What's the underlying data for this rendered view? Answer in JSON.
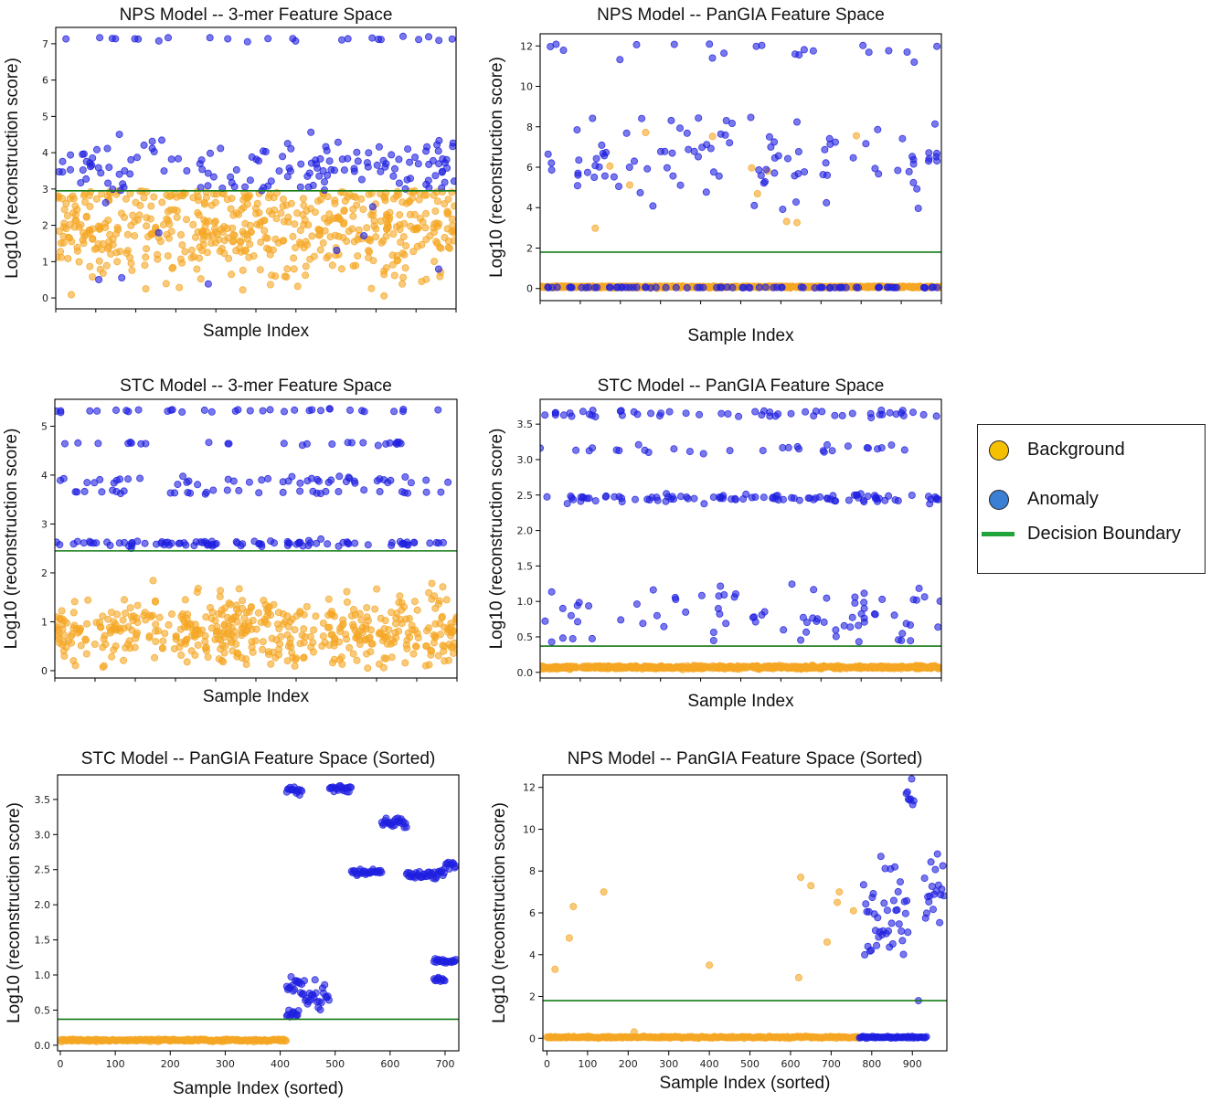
{
  "colors": {
    "background_point": "#f5a623",
    "anomaly_point": "#1f1fe0",
    "decision_boundary": "#157a15",
    "legend_background_dot": "#f5c000",
    "legend_anomaly_dot": "#3b7fd4",
    "legend_boundary_line": "#1fa33a"
  },
  "legend": {
    "items": [
      {
        "label": "Background",
        "icon": "yellow-circle-icon"
      },
      {
        "label": "Anomaly",
        "icon": "blue-circle-icon"
      },
      {
        "label": "Decision Boundary",
        "icon": "green-line-icon"
      }
    ]
  },
  "chart_data": [
    {
      "id": "nps-3mer",
      "type": "scatter",
      "title": "NPS Model -- 3-mer Feature Space",
      "xlabel": "Sample Index",
      "ylabel": "Log10 (reconstruction score)",
      "xlim": [
        0,
        720
      ],
      "ylim": [
        -0.3,
        7.45
      ],
      "yticks": [
        0,
        1,
        2,
        3,
        4,
        5,
        6,
        7
      ],
      "xticks": [],
      "decision_boundary": 2.95,
      "n_points": 720,
      "series": [
        {
          "name": "Background",
          "color": "background_point",
          "clusters": [
            {
              "center": 1.95,
              "spread": 0.75,
              "min": 0.0,
              "max": 2.95,
              "share": 1.0
            }
          ]
        },
        {
          "name": "Anomaly",
          "color": "anomaly_point",
          "clusters": [
            {
              "center": 3.6,
              "spread": 0.45,
              "min": 2.95,
              "max": 4.6,
              "share": 0.82
            },
            {
              "center": 7.15,
              "spread": 0.04,
              "min": 7.05,
              "max": 7.25,
              "share": 0.12
            },
            {
              "center": 1.2,
              "spread": 0.7,
              "min": 0.3,
              "max": 2.9,
              "share": 0.06
            }
          ],
          "count": 180
        }
      ]
    },
    {
      "id": "nps-pangia",
      "type": "scatter",
      "title": "NPS Model -- PanGIA Feature Space",
      "xlabel": "Sample Index",
      "ylabel": "Log10 (reconstruction score)",
      "xlim": [
        0,
        980
      ],
      "ylim": [
        -0.6,
        12.6
      ],
      "yticks": [
        0,
        2,
        4,
        6,
        8,
        10,
        12
      ],
      "xticks": [],
      "decision_boundary": 1.8,
      "n_points": 980,
      "series": [
        {
          "name": "Background",
          "color": "background_point",
          "clusters": [
            {
              "center": 0.08,
              "spread": 0.02,
              "min": 0.0,
              "max": 0.12,
              "share": 0.985
            },
            {
              "center": 5.2,
              "spread": 1.6,
              "min": 2.9,
              "max": 7.8,
              "share": 0.015
            }
          ]
        },
        {
          "name": "Anomaly",
          "color": "anomaly_point",
          "clusters": [
            {
              "center": 0.05,
              "spread": 0.01,
              "min": 0.0,
              "max": 0.1,
              "share": 0.4
            },
            {
              "center": 6.3,
              "spread": 1.1,
              "min": 3.2,
              "max": 8.5,
              "share": 0.5
            },
            {
              "center": 11.7,
              "spread": 0.3,
              "min": 10.8,
              "max": 12.1,
              "share": 0.1
            }
          ],
          "count": 200
        }
      ]
    },
    {
      "id": "stc-3mer",
      "type": "scatter",
      "title": "STC Model -- 3-mer Feature Space",
      "xlabel": "Sample Index",
      "ylabel": "Log10 (reconstruction score)",
      "xlim": [
        0,
        720
      ],
      "ylim": [
        -0.15,
        5.55
      ],
      "yticks": [
        0,
        1,
        2,
        3,
        4,
        5
      ],
      "xticks": [],
      "decision_boundary": 2.45,
      "n_points": 720,
      "series": [
        {
          "name": "Background",
          "color": "background_point",
          "clusters": [
            {
              "center": 0.8,
              "spread": 0.35,
              "min": 0.0,
              "max": 1.9,
              "share": 1.0
            }
          ]
        },
        {
          "name": "Anomaly",
          "color": "anomaly_point",
          "clusters": [
            {
              "center": 2.6,
              "spread": 0.03,
              "min": 2.5,
              "max": 2.7,
              "share": 0.38
            },
            {
              "center": 3.65,
              "spread": 0.02,
              "min": 3.6,
              "max": 3.7,
              "share": 0.15
            },
            {
              "center": 3.88,
              "spread": 0.04,
              "min": 3.8,
              "max": 4.0,
              "share": 0.2
            },
            {
              "center": 4.65,
              "spread": 0.02,
              "min": 4.6,
              "max": 4.7,
              "share": 0.12
            },
            {
              "center": 5.32,
              "spread": 0.02,
              "min": 5.28,
              "max": 5.36,
              "share": 0.15
            }
          ],
          "count": 230
        }
      ]
    },
    {
      "id": "stc-pangia",
      "type": "scatter",
      "title": "STC Model -- PanGIA Feature Space",
      "xlabel": "Sample Index",
      "ylabel": "Log10 (reconstruction score)",
      "xlim": [
        0,
        980
      ],
      "ylim": [
        -0.08,
        3.85
      ],
      "yticks": [
        0.0,
        0.5,
        1.0,
        1.5,
        2.0,
        2.5,
        3.0,
        3.5
      ],
      "xticks": [],
      "decision_boundary": 0.37,
      "n_points": 980,
      "series": [
        {
          "name": "Background",
          "color": "background_point",
          "clusters": [
            {
              "center": 0.07,
              "spread": 0.01,
              "min": 0.0,
              "max": 0.12,
              "share": 1.0
            }
          ]
        },
        {
          "name": "Anomaly",
          "color": "anomaly_point",
          "clusters": [
            {
              "center": 0.8,
              "spread": 0.22,
              "min": 0.42,
              "max": 1.25,
              "share": 0.3
            },
            {
              "center": 2.46,
              "spread": 0.03,
              "min": 2.35,
              "max": 2.65,
              "share": 0.35
            },
            {
              "center": 3.15,
              "spread": 0.04,
              "min": 3.05,
              "max": 3.25,
              "share": 0.15
            },
            {
              "center": 3.64,
              "spread": 0.03,
              "min": 3.55,
              "max": 3.7,
              "share": 0.2
            }
          ],
          "count": 260
        }
      ]
    },
    {
      "id": "stc-pangia-sorted",
      "type": "scatter",
      "title": "STC Model -- PanGIA Feature Space (Sorted)",
      "xlabel": "Sample Index (sorted)",
      "ylabel": "Log10 (reconstruction score)",
      "xlim": [
        -5,
        725
      ],
      "ylim": [
        -0.08,
        3.85
      ],
      "yticks": [
        0.0,
        0.5,
        1.0,
        1.5,
        2.0,
        2.5,
        3.0,
        3.5
      ],
      "xticks": [
        0,
        100,
        200,
        300,
        400,
        500,
        600,
        700
      ],
      "decision_boundary": 0.37,
      "segments": [
        {
          "series": "Background",
          "x": [
            0,
            412
          ],
          "y": 0.07,
          "jitter": 0.008
        },
        {
          "series": "Anomaly",
          "x": [
            412,
            440
          ],
          "y": 3.63,
          "jitter": 0.03
        },
        {
          "series": "Anomaly",
          "x": [
            412,
            440
          ],
          "y": 0.85,
          "jitter": 0.05
        },
        {
          "series": "Anomaly",
          "x": [
            412,
            435
          ],
          "y": 0.45,
          "jitter": 0.04
        },
        {
          "series": "Anomaly",
          "x": [
            440,
            490
          ],
          "y": 0.7,
          "jitter": 0.09
        },
        {
          "series": "Anomaly",
          "x": [
            490,
            530
          ],
          "y": 3.65,
          "jitter": 0.02
        },
        {
          "series": "Anomaly",
          "x": [
            530,
            585
          ],
          "y": 2.46,
          "jitter": 0.02
        },
        {
          "series": "Anomaly",
          "x": [
            585,
            630
          ],
          "y": 3.17,
          "jitter": 0.03
        },
        {
          "series": "Anomaly",
          "x": [
            630,
            700
          ],
          "y": 2.43,
          "jitter": 0.03
        },
        {
          "series": "Anomaly",
          "x": [
            680,
            700
          ],
          "y": 1.2,
          "jitter": 0.02
        },
        {
          "series": "Anomaly",
          "x": [
            680,
            700
          ],
          "y": 0.93,
          "jitter": 0.02
        },
        {
          "series": "Anomaly",
          "x": [
            700,
            720
          ],
          "y": 1.2,
          "jitter": 0.02
        },
        {
          "series": "Anomaly",
          "x": [
            700,
            720
          ],
          "y": 2.58,
          "jitter": 0.03
        }
      ]
    },
    {
      "id": "nps-pangia-sorted",
      "type": "scatter",
      "title": "NPS Model -- PanGIA Feature Space (Sorted)",
      "xlabel": "Sample Index (sorted)",
      "ylabel": "Log10 (reconstruction score)",
      "xlim": [
        -10,
        985
      ],
      "ylim": [
        -0.6,
        12.6
      ],
      "yticks": [
        0,
        2,
        4,
        6,
        8,
        10,
        12
      ],
      "xticks": [
        0,
        100,
        200,
        300,
        400,
        500,
        600,
        700,
        800,
        900
      ],
      "decision_boundary": 1.8,
      "segments": [
        {
          "series": "Background",
          "x": [
            0,
            770
          ],
          "y": 0.05,
          "jitter": 0.02
        },
        {
          "series": "Anomaly",
          "x": [
            770,
            935
          ],
          "y": 0.05,
          "jitter": 0.02
        },
        {
          "series": "Anomaly",
          "x": [
            780,
            890
          ],
          "y": 6.0,
          "jitter": 1.2
        },
        {
          "series": "Anomaly",
          "x": [
            885,
            905
          ],
          "y": 11.7,
          "jitter": 0.3
        },
        {
          "series": "Anomaly",
          "x": [
            930,
            980
          ],
          "y": 7.0,
          "jitter": 0.9
        }
      ],
      "outliers": [
        {
          "series": "Background",
          "x": 20,
          "y": 3.3
        },
        {
          "series": "Background",
          "x": 55,
          "y": 4.8
        },
        {
          "series": "Background",
          "x": 65,
          "y": 6.3
        },
        {
          "series": "Background",
          "x": 140,
          "y": 7.0
        },
        {
          "series": "Background",
          "x": 215,
          "y": 0.3
        },
        {
          "series": "Background",
          "x": 400,
          "y": 3.5
        },
        {
          "series": "Background",
          "x": 620,
          "y": 2.9
        },
        {
          "series": "Background",
          "x": 625,
          "y": 7.7
        },
        {
          "series": "Background",
          "x": 650,
          "y": 7.3
        },
        {
          "series": "Background",
          "x": 690,
          "y": 4.6
        },
        {
          "series": "Background",
          "x": 715,
          "y": 6.5
        },
        {
          "series": "Background",
          "x": 720,
          "y": 7.0
        },
        {
          "series": "Background",
          "x": 755,
          "y": 6.1
        },
        {
          "series": "Anomaly",
          "x": 915,
          "y": 1.8
        }
      ]
    }
  ]
}
